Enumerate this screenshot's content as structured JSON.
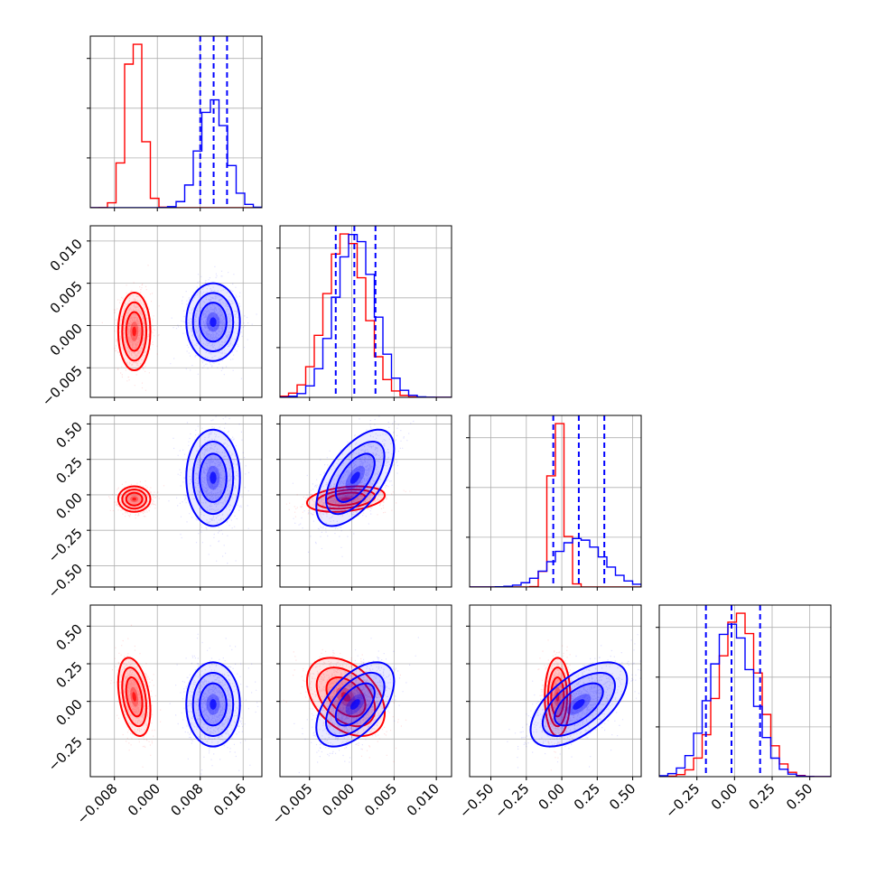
{
  "chart_data": {
    "type": "corner",
    "grid": true,
    "colors": {
      "series_a": "#ff0000",
      "series_b": "#0000ff",
      "quantile_lines": "#0000ff",
      "grid": "#b0b0b0"
    },
    "series": [
      {
        "color": "#ff0000",
        "means": [
          -0.0043,
          -0.0007,
          -0.03,
          0.03
        ],
        "sds": [
          0.0015,
          0.0023,
          0.045,
          0.13
        ]
      },
      {
        "color": "#0000ff",
        "means": [
          0.0104,
          0.0004,
          0.12,
          -0.02
        ],
        "sds": [
          0.0025,
          0.0023,
          0.17,
          0.14
        ]
      }
    ],
    "parameters": [
      {
        "range": [
          -0.0125,
          0.0195
        ],
        "ticks": [
          -0.008,
          0.0,
          0.008,
          0.016
        ],
        "tick_labels": [
          "−0.008",
          "0.000",
          "0.008",
          "0.016"
        ],
        "quantiles": [
          0.008,
          0.0105,
          0.013
        ]
      },
      {
        "range": [
          -0.0085,
          0.0118
        ],
        "ticks": [
          -0.005,
          0.0,
          0.005,
          0.01
        ],
        "tick_labels": [
          "−0.005",
          "0.000",
          "0.005",
          "0.010"
        ],
        "quantiles": [
          -0.0019,
          0.0003,
          0.0028
        ]
      },
      {
        "range": [
          -0.65,
          0.56
        ],
        "ticks": [
          -0.5,
          -0.25,
          0.0,
          0.25,
          0.5
        ],
        "tick_labels": [
          "−0.50",
          "−0.25",
          "0.00",
          "0.25",
          "0.50"
        ],
        "quantiles": [
          -0.06,
          0.12,
          0.3
        ]
      },
      {
        "range": [
          -0.5,
          0.64
        ],
        "ticks": [
          -0.25,
          0.0,
          0.25,
          0.5
        ],
        "tick_labels": [
          "−0.25",
          "0.00",
          "0.25",
          "0.50"
        ],
        "quantiles": [
          -0.19,
          -0.02,
          0.17
        ]
      }
    ],
    "correlations": {
      "series_a": {
        "1-0": 0.0,
        "2-0": 0.0,
        "2-1": 0.3,
        "3-0": -0.35,
        "3-1": -0.4,
        "3-2": 0.0
      },
      "series_b": {
        "1-0": 0.0,
        "2-0": 0.0,
        "2-1": 0.6,
        "3-0": 0.0,
        "3-1": 0.55,
        "3-2": 0.6
      }
    },
    "xlabel": "",
    "ylabel": "",
    "title": ""
  }
}
